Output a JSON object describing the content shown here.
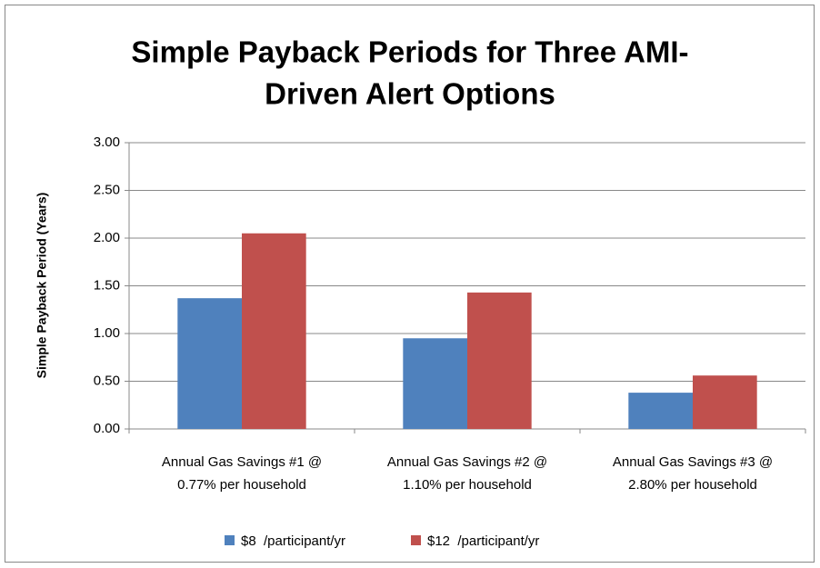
{
  "chart_data": {
    "type": "bar",
    "title": [
      "Simple Payback Periods for Three AMI-",
      "Driven Alert Options"
    ],
    "ylabel": "Simple Payback Period (Years)",
    "categories": [
      [
        "Annual Gas Savings #1 @",
        "0.77% per household"
      ],
      [
        "Annual Gas Savings #2 @",
        "1.10% per household"
      ],
      [
        "Annual Gas Savings #3 @",
        "2.80% per household"
      ]
    ],
    "series": [
      {
        "name": "$8  /participant/yr",
        "color": "#4f81bd",
        "values": [
          1.37,
          0.95,
          0.38
        ]
      },
      {
        "name": "$12  /participant/yr",
        "color": "#c0504d",
        "values": [
          2.05,
          1.43,
          0.56
        ]
      }
    ],
    "ylim": [
      0,
      3
    ],
    "yticks": [
      {
        "value": 0,
        "label": "0.00"
      },
      {
        "value": 0.5,
        "label": "0.50"
      },
      {
        "value": 1,
        "label": "1.00"
      },
      {
        "value": 1.5,
        "label": "1.50"
      },
      {
        "value": 2,
        "label": "2.00"
      },
      {
        "value": 2.5,
        "label": "2.50"
      },
      {
        "value": 3,
        "label": "3.00"
      }
    ],
    "grid": true,
    "legend": "bottom"
  }
}
